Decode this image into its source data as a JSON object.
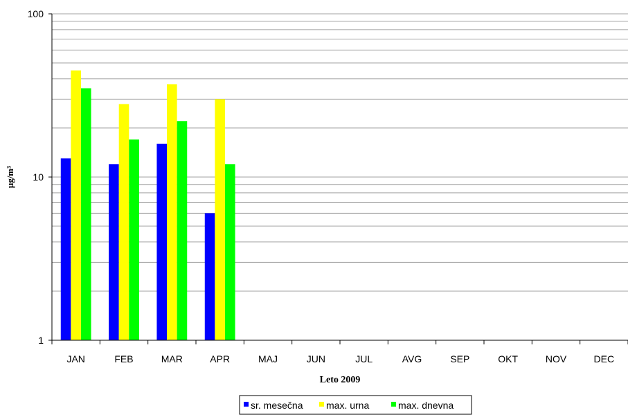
{
  "chart_data": {
    "type": "bar",
    "scale": "log",
    "ylim": [
      1,
      100
    ],
    "y_ticks": [
      "1",
      "10",
      "100"
    ],
    "categories": [
      "JAN",
      "FEB",
      "MAR",
      "APR",
      "MAJ",
      "JUN",
      "JUL",
      "AVG",
      "SEP",
      "OKT",
      "NOV",
      "DEC"
    ],
    "series": [
      {
        "name": "sr. mesečna",
        "color": "#0000FF",
        "values": [
          13,
          12,
          16,
          6,
          null,
          null,
          null,
          null,
          null,
          null,
          null,
          null
        ]
      },
      {
        "name": "max. urna",
        "color": "#FFFF00",
        "values": [
          45,
          28,
          37,
          30,
          null,
          null,
          null,
          null,
          null,
          null,
          null,
          null
        ]
      },
      {
        "name": "max. dnevna",
        "color": "#00FF00",
        "values": [
          35,
          17,
          22,
          12,
          null,
          null,
          null,
          null,
          null,
          null,
          null,
          null
        ]
      }
    ],
    "xlabel": "Leto 2009",
    "ylabel": "µg/m³",
    "grid": true,
    "legend_position": "bottom"
  }
}
